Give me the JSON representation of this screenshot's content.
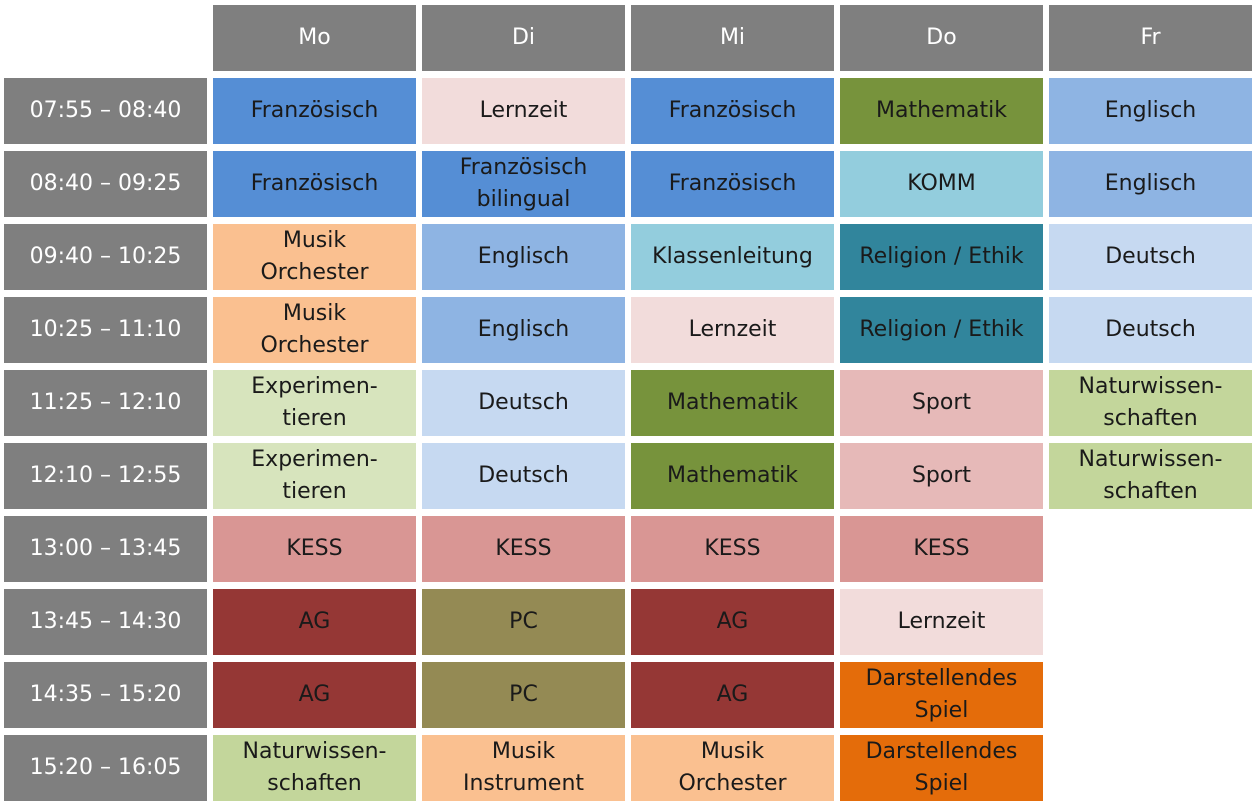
{
  "days": [
    "Mo",
    "Di",
    "Mi",
    "Do",
    "Fr"
  ],
  "rows": [
    {
      "time": "07:55 – 08:40",
      "cells": [
        {
          "lines": [
            "Französisch"
          ],
          "color": "#558ed5"
        },
        {
          "lines": [
            "Lernzeit"
          ],
          "color": "#f2dcdb"
        },
        {
          "lines": [
            "Französisch"
          ],
          "color": "#558ed5"
        },
        {
          "lines": [
            "Mathematik"
          ],
          "color": "#77933c"
        },
        {
          "lines": [
            "Englisch"
          ],
          "color": "#8eb4e3"
        }
      ]
    },
    {
      "time": "08:40 – 09:25",
      "cells": [
        {
          "lines": [
            "Französisch"
          ],
          "color": "#558ed5"
        },
        {
          "lines": [
            "Französisch",
            "bilingual"
          ],
          "color": "#558ed5"
        },
        {
          "lines": [
            "Französisch"
          ],
          "color": "#558ed5"
        },
        {
          "lines": [
            "KOMM"
          ],
          "color": "#93cddd"
        },
        {
          "lines": [
            "Englisch"
          ],
          "color": "#8eb4e3"
        }
      ]
    },
    {
      "time": "09:40 – 10:25",
      "cells": [
        {
          "lines": [
            "Musik",
            "Orchester"
          ],
          "color": "#fac090"
        },
        {
          "lines": [
            "Englisch"
          ],
          "color": "#8eb4e3"
        },
        {
          "lines": [
            "Klassenleitung"
          ],
          "color": "#93cddd"
        },
        {
          "lines": [
            "Religion / Ethik"
          ],
          "color": "#31859c"
        },
        {
          "lines": [
            "Deutsch"
          ],
          "color": "#c6d9f1"
        }
      ]
    },
    {
      "time": "10:25 – 11:10",
      "cells": [
        {
          "lines": [
            "Musik",
            "Orchester"
          ],
          "color": "#fac090"
        },
        {
          "lines": [
            "Englisch"
          ],
          "color": "#8eb4e3"
        },
        {
          "lines": [
            "Lernzeit"
          ],
          "color": "#f2dcdb"
        },
        {
          "lines": [
            "Religion / Ethik"
          ],
          "color": "#31859c"
        },
        {
          "lines": [
            "Deutsch"
          ],
          "color": "#c6d9f1"
        }
      ]
    },
    {
      "time": "11:25 – 12:10",
      "cells": [
        {
          "lines": [
            "Experimen-",
            "tieren"
          ],
          "color": "#d7e4bd"
        },
        {
          "lines": [
            "Deutsch"
          ],
          "color": "#c6d9f1"
        },
        {
          "lines": [
            "Mathematik"
          ],
          "color": "#77933c"
        },
        {
          "lines": [
            "Sport"
          ],
          "color": "#e6b9b8"
        },
        {
          "lines": [
            "Naturwissen-",
            "schaften"
          ],
          "color": "#c3d69b"
        }
      ]
    },
    {
      "time": "12:10 – 12:55",
      "cells": [
        {
          "lines": [
            "Experimen-",
            "tieren"
          ],
          "color": "#d7e4bd"
        },
        {
          "lines": [
            "Deutsch"
          ],
          "color": "#c6d9f1"
        },
        {
          "lines": [
            "Mathematik"
          ],
          "color": "#77933c"
        },
        {
          "lines": [
            "Sport"
          ],
          "color": "#e6b9b8"
        },
        {
          "lines": [
            "Naturwissen-",
            "schaften"
          ],
          "color": "#c3d69b"
        }
      ]
    },
    {
      "time": "13:00 – 13:45",
      "cells": [
        {
          "lines": [
            "KESS"
          ],
          "color": "#d99694"
        },
        {
          "lines": [
            "KESS"
          ],
          "color": "#d99694"
        },
        {
          "lines": [
            "KESS"
          ],
          "color": "#d99694"
        },
        {
          "lines": [
            "KESS"
          ],
          "color": "#d99694"
        },
        null
      ]
    },
    {
      "time": "13:45 – 14:30",
      "cells": [
        {
          "lines": [
            "AG"
          ],
          "color": "#953735"
        },
        {
          "lines": [
            "PC"
          ],
          "color": "#948a54"
        },
        {
          "lines": [
            "AG"
          ],
          "color": "#953735"
        },
        {
          "lines": [
            "Lernzeit"
          ],
          "color": "#f2dcdb"
        },
        null
      ]
    },
    {
      "time": "14:35 – 15:20",
      "cells": [
        {
          "lines": [
            "AG"
          ],
          "color": "#953735"
        },
        {
          "lines": [
            "PC"
          ],
          "color": "#948a54"
        },
        {
          "lines": [
            "AG"
          ],
          "color": "#953735"
        },
        {
          "lines": [
            "Darstellendes",
            "Spiel"
          ],
          "color": "#e46c0a"
        },
        null
      ]
    },
    {
      "time": "15:20 – 16:05",
      "cells": [
        {
          "lines": [
            "Naturwissen-",
            "schaften"
          ],
          "color": "#c3d69b"
        },
        {
          "lines": [
            "Musik",
            "Instrument"
          ],
          "color": "#fac090"
        },
        {
          "lines": [
            "Musik",
            "Orchester"
          ],
          "color": "#fac090"
        },
        {
          "lines": [
            "Darstellendes",
            "Spiel"
          ],
          "color": "#e46c0a"
        },
        null
      ]
    }
  ]
}
